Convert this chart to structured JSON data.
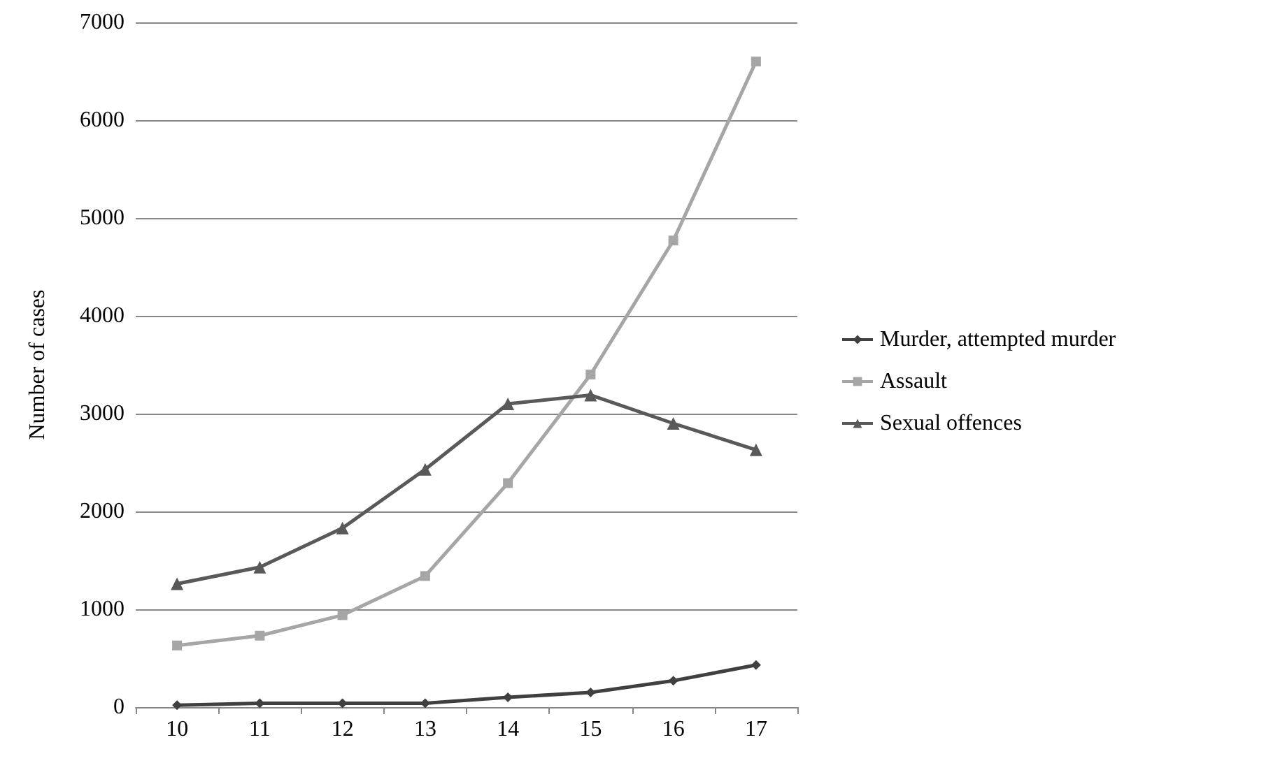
{
  "chart_data": {
    "type": "line",
    "ylabel": "Number of cases",
    "categories": [
      "10",
      "11",
      "12",
      "13",
      "14",
      "15",
      "16",
      "17"
    ],
    "series": [
      {
        "name": "Murder, attempted murder",
        "color": "#404040",
        "marker": "diamond",
        "values": [
          20,
          40,
          40,
          40,
          100,
          150,
          270,
          430
        ]
      },
      {
        "name": "Assault",
        "color": "#a6a6a6",
        "marker": "square",
        "values": [
          630,
          730,
          940,
          1340,
          2290,
          3400,
          4770,
          6600
        ]
      },
      {
        "name": "Sexual offences",
        "color": "#595959",
        "marker": "triangle",
        "values": [
          1260,
          1430,
          1830,
          2430,
          3100,
          3190,
          2900,
          2630
        ]
      }
    ],
    "ylim": [
      0,
      7000
    ],
    "yticks": [
      0,
      1000,
      2000,
      3000,
      4000,
      5000,
      6000,
      7000
    ],
    "grid": "y",
    "legend": "right"
  }
}
